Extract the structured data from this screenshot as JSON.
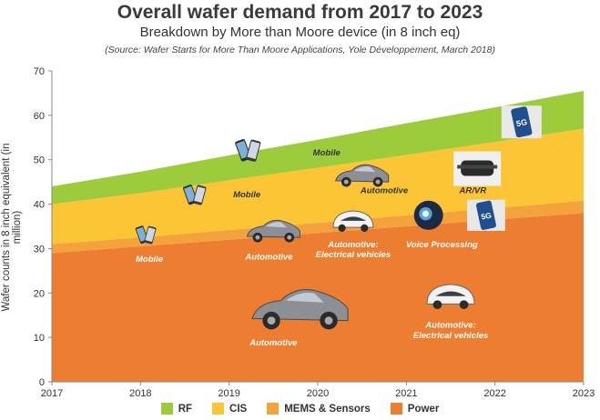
{
  "chart_data": {
    "type": "area",
    "title": "Overall wafer demand from 2017 to 2023",
    "subtitle": "Breakdown by More than Moore device (in 8 inch eq)",
    "source": "(Source: Wafer Starts for More Than Moore Applications, Yole Développement, March 2018)",
    "ylabel": "Wafer counts in 8 inch equivalent (in million)",
    "xlabel": "",
    "x": [
      "2017",
      "2018",
      "2019",
      "2020",
      "2021",
      "2022",
      "2023"
    ],
    "ylim": [
      0,
      70
    ],
    "yticks": [
      "0",
      "10",
      "20",
      "30",
      "40",
      "50",
      "60",
      "70"
    ],
    "stacked": true,
    "series": [
      {
        "name": "Power",
        "color": "#ed7d31",
        "values": [
          29,
          30.5,
          32,
          33.5,
          35,
          36.5,
          38
        ]
      },
      {
        "name": "MEMS & Sensors",
        "color": "#f4a23c",
        "values": [
          2,
          2,
          2.2,
          2.3,
          2.5,
          2.6,
          2.8
        ]
      },
      {
        "name": "CIS",
        "color": "#fbc535",
        "values": [
          9,
          10,
          11.2,
          12.4,
          13.6,
          14.9,
          16.2
        ]
      },
      {
        "name": "RF",
        "color": "#9ccb3b",
        "values": [
          4,
          4.8,
          5.6,
          6.3,
          7.1,
          7.8,
          8.5
        ]
      }
    ],
    "legend_order": [
      "RF",
      "CIS",
      "MEMS & Sensors",
      "Power"
    ],
    "legend_position": "bottom",
    "grid": false,
    "annotations": [
      {
        "text": "Mobile",
        "x": 2018.1,
        "y": 27,
        "style": "light"
      },
      {
        "text": "Mobile",
        "x": 2019.2,
        "y": 41.5,
        "style": "dark"
      },
      {
        "text": "Mobile",
        "x": 2020.1,
        "y": 51,
        "style": "dark"
      },
      {
        "text": "Automotive",
        "x": 2019.45,
        "y": 27.5,
        "style": "light"
      },
      {
        "text": "Automotive",
        "x": 2020.75,
        "y": 42.5,
        "style": "dark"
      },
      {
        "text": "Automotive:",
        "x": 2020.4,
        "y": 30.3,
        "style": "light"
      },
      {
        "text": "Electrical vehicles",
        "x": 2020.4,
        "y": 28,
        "style": "light"
      },
      {
        "text": "Voice Processing",
        "x": 2021.4,
        "y": 30.3,
        "style": "light"
      },
      {
        "text": "AR/VR",
        "x": 2021.75,
        "y": 42.5,
        "style": "dark"
      },
      {
        "text": "Automotive",
        "x": 2019.5,
        "y": 8.2,
        "style": "light"
      },
      {
        "text": "Automotive:",
        "x": 2021.5,
        "y": 12.2,
        "style": "light"
      },
      {
        "text": "Electrical vehicles",
        "x": 2021.5,
        "y": 9.8,
        "style": "light"
      }
    ],
    "icons": [
      "smartphone-icon",
      "smartphone-icon",
      "smartphone-icon",
      "car-icon",
      "car-icon",
      "car-icon",
      "ev-car-icon",
      "ev-car-icon",
      "voice-icon",
      "vr-headset-icon",
      "5g-phone-icon",
      "5g-phone-icon"
    ]
  }
}
